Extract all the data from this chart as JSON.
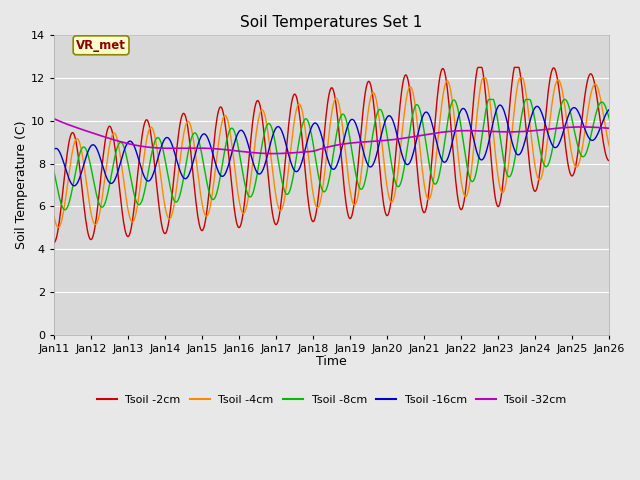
{
  "title": "Soil Temperatures Set 1",
  "xlabel": "Time",
  "ylabel": "Soil Temperature (C)",
  "ylim": [
    0,
    14
  ],
  "yticks": [
    0,
    2,
    4,
    6,
    8,
    10,
    12,
    14
  ],
  "x_tick_labels": [
    "Jan 11",
    "Jan 12",
    "Jan 13",
    "Jan 14",
    "Jan 15",
    "Jan 16",
    "Jan 17",
    "Jan 18",
    "Jan 19",
    "Jan 20",
    "Jan 21",
    "Jan 22",
    "Jan 23",
    "Jan 24",
    "Jan 25",
    "Jan 26"
  ],
  "series_colors": {
    "Tsoil -2cm": "#cc0000",
    "Tsoil -4cm": "#ff8800",
    "Tsoil -8cm": "#00bb00",
    "Tsoil -16cm": "#0000cc",
    "Tsoil -32cm": "#bb00bb"
  },
  "bg_color": "#e8e8e8",
  "plot_bg_color": "#d8d8d8",
  "grid_color": "#ffffff",
  "annotation_text": "VR_met",
  "figsize": [
    6.4,
    4.8
  ],
  "dpi": 100
}
